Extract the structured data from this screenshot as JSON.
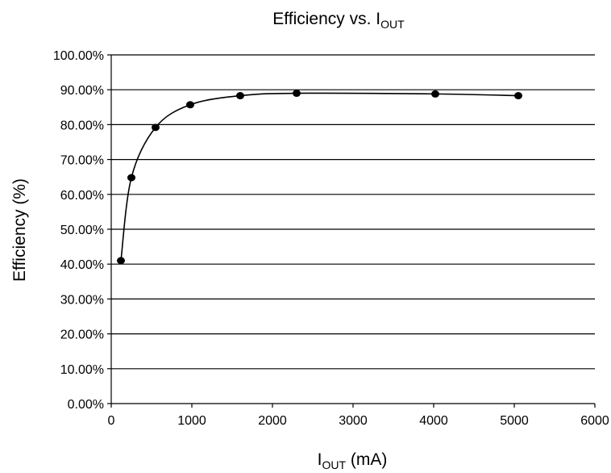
{
  "chart_data": {
    "type": "scatter",
    "title": {
      "main": "Efficiency vs. I",
      "sub": "OUT"
    },
    "xlabel": {
      "main": "I",
      "sub": "OUT",
      "rest": " (mA)"
    },
    "ylabel": "Efficiency (%)",
    "xlim": [
      0,
      6000
    ],
    "ylim": [
      0,
      1.0
    ],
    "x_ticks": [
      "0",
      "1000",
      "2000",
      "3000",
      "4000",
      "5000",
      "6000"
    ],
    "y_ticks": [
      "0.00%",
      "10.00%",
      "20.00%",
      "30.00%",
      "40.00%",
      "50.00%",
      "60.00%",
      "70.00%",
      "80.00%",
      "90.00%",
      "100.00%"
    ],
    "grid": "horizontal",
    "smoothed_line": true,
    "series": [
      {
        "x": [
          120,
          250,
          550,
          980,
          1600,
          2300,
          4020,
          5050
        ],
        "y": [
          0.41,
          0.648,
          0.792,
          0.857,
          0.883,
          0.89,
          0.888,
          0.883
        ]
      }
    ]
  }
}
